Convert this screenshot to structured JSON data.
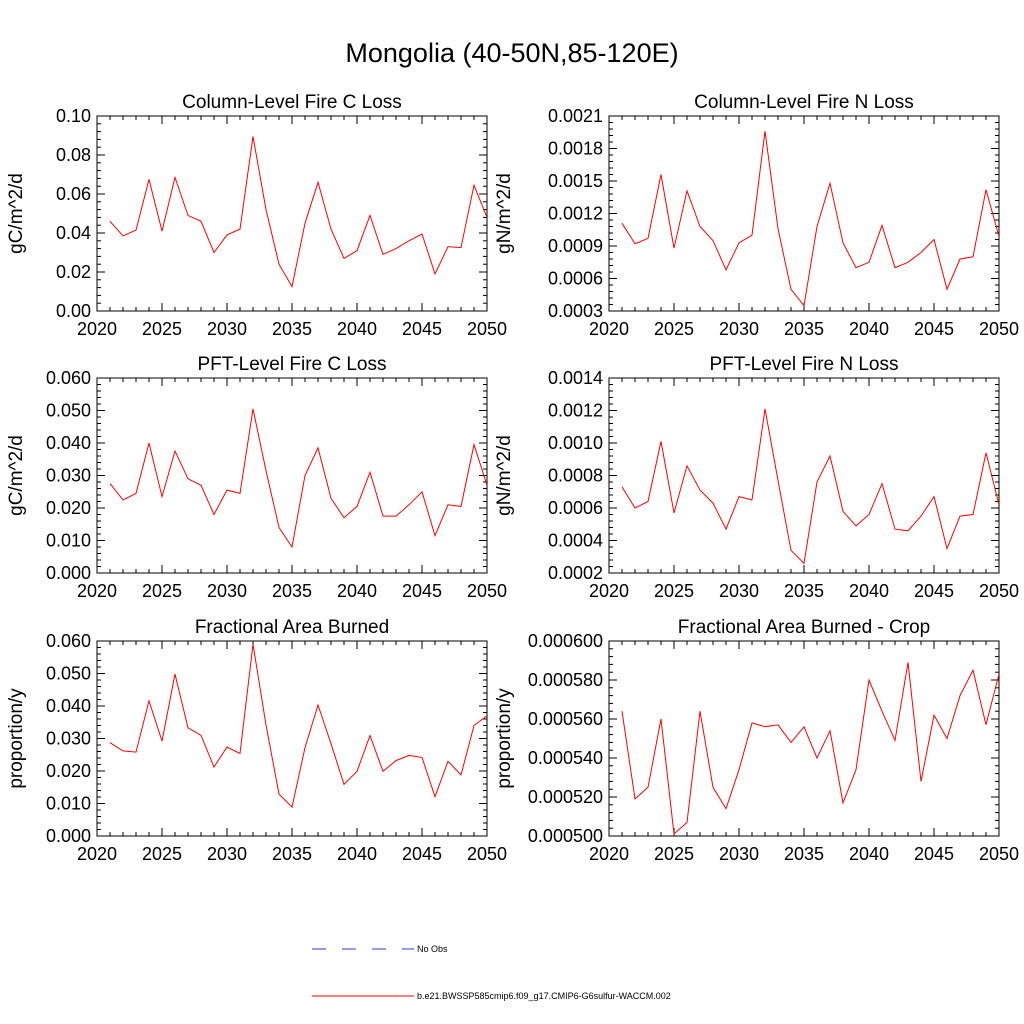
{
  "page": {
    "title": "Mongolia (40-50N,85-120E)"
  },
  "legend": {
    "items": [
      {
        "label": "No Obs",
        "color": "#3333cc",
        "dashed": true
      },
      {
        "label": "b.e21.BWSSP585cmip6.f09_g17.CMIP6-G6sulfur-WACCM.002",
        "color": "#ff0000",
        "dashed": false
      }
    ]
  },
  "colors": {
    "series": "#ff0000",
    "axis": "#000000"
  },
  "chart_data": [
    {
      "type": "line",
      "title": "Column-Level Fire C Loss",
      "ylabel": "gC/m^2/d",
      "xlabel": "",
      "xlim": [
        2020,
        2050
      ],
      "ylim": [
        0.0,
        0.1
      ],
      "xticks": [
        "2020",
        "2025",
        "2030",
        "2035",
        "2040",
        "2045",
        "2050"
      ],
      "yticks": [
        "0.00",
        "0.02",
        "0.04",
        "0.06",
        "0.08",
        "0.10"
      ],
      "x": [
        2021,
        2022,
        2023,
        2024,
        2025,
        2026,
        2027,
        2028,
        2029,
        2030,
        2031,
        2032,
        2033,
        2034,
        2035,
        2036,
        2037,
        2038,
        2039,
        2040,
        2041,
        2042,
        2043,
        2044,
        2045,
        2046,
        2047,
        2048,
        2049,
        2050
      ],
      "series": [
        {
          "values": [
            0.046,
            0.0385,
            0.0415,
            0.0675,
            0.041,
            0.0685,
            0.049,
            0.046,
            0.03,
            0.039,
            0.042,
            0.0895,
            0.052,
            0.024,
            0.0125,
            0.045,
            0.066,
            0.042,
            0.027,
            0.031,
            0.049,
            0.029,
            0.032,
            0.036,
            0.0395,
            0.019,
            0.033,
            0.0325,
            0.0645,
            0.048
          ]
        }
      ]
    },
    {
      "type": "line",
      "title": "Column-Level Fire N Loss",
      "ylabel": "gN/m^2/d",
      "xlabel": "",
      "xlim": [
        2020,
        2050
      ],
      "ylim": [
        0.0003,
        0.0021
      ],
      "xticks": [
        "2020",
        "2025",
        "2030",
        "2035",
        "2040",
        "2045",
        "2050"
      ],
      "yticks": [
        "0.0003",
        "0.0006",
        "0.0009",
        "0.0012",
        "0.0015",
        "0.0018",
        "0.0021"
      ],
      "x": [
        2021,
        2022,
        2023,
        2024,
        2025,
        2026,
        2027,
        2028,
        2029,
        2030,
        2031,
        2032,
        2033,
        2034,
        2035,
        2036,
        2037,
        2038,
        2039,
        2040,
        2041,
        2042,
        2043,
        2044,
        2045,
        2046,
        2047,
        2048,
        2049,
        2050
      ],
      "series": [
        {
          "values": [
            0.00111,
            0.00092,
            0.00097,
            0.00156,
            0.00088,
            0.00141,
            0.00108,
            0.00095,
            0.00068,
            0.00093,
            0.001,
            0.00196,
            0.00106,
            0.0005,
            0.00035,
            0.00108,
            0.00148,
            0.00093,
            0.0007,
            0.00075,
            0.00109,
            0.0007,
            0.00075,
            0.00084,
            0.00096,
            0.0005,
            0.00078,
            0.0008,
            0.00142,
            0.00099
          ]
        }
      ]
    },
    {
      "type": "line",
      "title": "PFT-Level Fire C Loss",
      "ylabel": "gC/m^2/d",
      "xlabel": "",
      "xlim": [
        2020,
        2050
      ],
      "ylim": [
        0.0,
        0.06
      ],
      "xticks": [
        "2020",
        "2025",
        "2030",
        "2035",
        "2040",
        "2045",
        "2050"
      ],
      "yticks": [
        "0.000",
        "0.010",
        "0.020",
        "0.030",
        "0.040",
        "0.050",
        "0.060"
      ],
      "x": [
        2021,
        2022,
        2023,
        2024,
        2025,
        2026,
        2027,
        2028,
        2029,
        2030,
        2031,
        2032,
        2033,
        2034,
        2035,
        2036,
        2037,
        2038,
        2039,
        2040,
        2041,
        2042,
        2043,
        2044,
        2045,
        2046,
        2047,
        2048,
        2049,
        2050
      ],
      "series": [
        {
          "values": [
            0.0275,
            0.0225,
            0.0245,
            0.04,
            0.0235,
            0.0375,
            0.029,
            0.027,
            0.018,
            0.0255,
            0.0245,
            0.0505,
            0.0315,
            0.014,
            0.008,
            0.03,
            0.0385,
            0.023,
            0.017,
            0.0205,
            0.031,
            0.0175,
            0.0175,
            0.021,
            0.025,
            0.0115,
            0.021,
            0.0205,
            0.0395,
            0.027
          ]
        }
      ]
    },
    {
      "type": "line",
      "title": "PFT-Level Fire N Loss",
      "ylabel": "gN/m^2/d",
      "xlabel": "",
      "xlim": [
        2020,
        2050
      ],
      "ylim": [
        0.0002,
        0.0014
      ],
      "xticks": [
        "2020",
        "2025",
        "2030",
        "2035",
        "2040",
        "2045",
        "2050"
      ],
      "yticks": [
        "0.0002",
        "0.0004",
        "0.0006",
        "0.0008",
        "0.0010",
        "0.0012",
        "0.0014"
      ],
      "x": [
        2021,
        2022,
        2023,
        2024,
        2025,
        2026,
        2027,
        2028,
        2029,
        2030,
        2031,
        2032,
        2033,
        2034,
        2035,
        2036,
        2037,
        2038,
        2039,
        2040,
        2041,
        2042,
        2043,
        2044,
        2045,
        2046,
        2047,
        2048,
        2049,
        2050
      ],
      "series": [
        {
          "values": [
            0.00073,
            0.0006,
            0.00064,
            0.00101,
            0.00057,
            0.00086,
            0.00071,
            0.00063,
            0.00047,
            0.00067,
            0.00065,
            0.00121,
            0.00077,
            0.00034,
            0.00026,
            0.00076,
            0.00092,
            0.00058,
            0.00049,
            0.00056,
            0.00075,
            0.00047,
            0.00046,
            0.00055,
            0.00067,
            0.00035,
            0.00055,
            0.00056,
            0.00094,
            0.00062
          ]
        }
      ]
    },
    {
      "type": "line",
      "title": "Fractional Area Burned",
      "ylabel": "proportion/y",
      "xlabel": "",
      "xlim": [
        2020,
        2050
      ],
      "ylim": [
        0.0,
        0.06
      ],
      "xticks": [
        "2020",
        "2025",
        "2030",
        "2035",
        "2040",
        "2045",
        "2050"
      ],
      "yticks": [
        "0.000",
        "0.010",
        "0.020",
        "0.030",
        "0.040",
        "0.050",
        "0.060"
      ],
      "x": [
        2021,
        2022,
        2023,
        2024,
        2025,
        2026,
        2027,
        2028,
        2029,
        2030,
        2031,
        2032,
        2033,
        2034,
        2035,
        2036,
        2037,
        2038,
        2039,
        2040,
        2041,
        2042,
        2043,
        2044,
        2045,
        2046,
        2047,
        2048,
        2049,
        2050
      ],
      "series": [
        {
          "values": [
            0.0287,
            0.0262,
            0.0258,
            0.0416,
            0.0292,
            0.0498,
            0.0333,
            0.031,
            0.0212,
            0.0274,
            0.0254,
            0.059,
            0.0342,
            0.0129,
            0.0089,
            0.0272,
            0.0403,
            0.0284,
            0.0159,
            0.0199,
            0.0309,
            0.0199,
            0.0232,
            0.0248,
            0.0242,
            0.0121,
            0.023,
            0.0188,
            0.034,
            0.037
          ]
        }
      ]
    },
    {
      "type": "line",
      "title": "Fractional Area Burned - Crop",
      "ylabel": "proportion/y",
      "xlabel": "",
      "xlim": [
        2020,
        2050
      ],
      "ylim": [
        0.0005,
        0.0006
      ],
      "xticks": [
        "2020",
        "2025",
        "2030",
        "2035",
        "2040",
        "2045",
        "2050"
      ],
      "yticks": [
        "0.000500",
        "0.000520",
        "0.000540",
        "0.000560",
        "0.000580",
        "0.000600"
      ],
      "x": [
        2021,
        2022,
        2023,
        2024,
        2025,
        2026,
        2027,
        2028,
        2029,
        2030,
        2031,
        2032,
        2033,
        2034,
        2035,
        2036,
        2037,
        2038,
        2039,
        2040,
        2041,
        2042,
        2043,
        2044,
        2045,
        2046,
        2047,
        2048,
        2049,
        2050
      ],
      "series": [
        {
          "values": [
            0.000564,
            0.000519,
            0.000525,
            0.00056,
            0.000501,
            0.000507,
            0.000564,
            0.000525,
            0.000514,
            0.000534,
            0.000558,
            0.000556,
            0.000557,
            0.000548,
            0.000556,
            0.00054,
            0.000554,
            0.000517,
            0.000534,
            0.00058,
            0.000564,
            0.000549,
            0.000589,
            0.000528,
            0.000562,
            0.00055,
            0.000572,
            0.000585,
            0.000557,
            0.000583
          ]
        }
      ]
    }
  ]
}
